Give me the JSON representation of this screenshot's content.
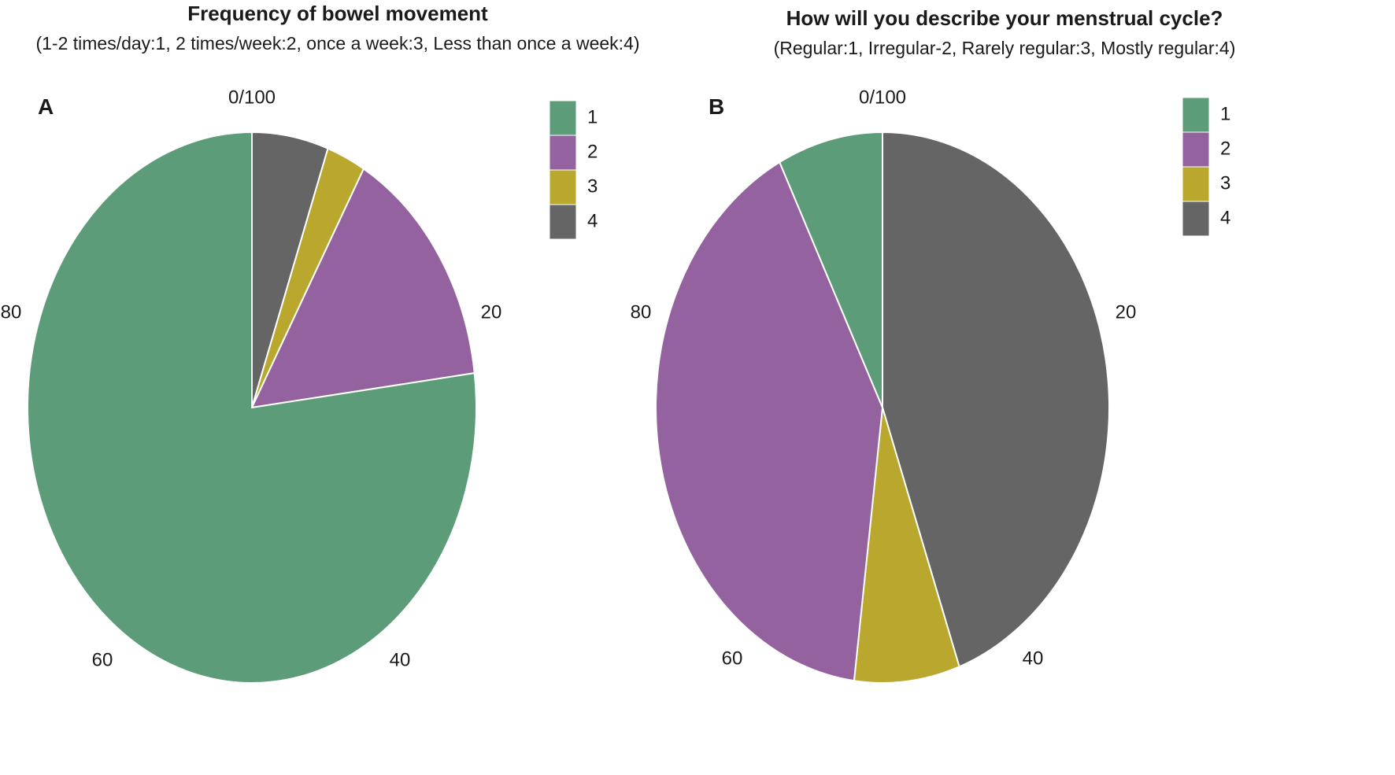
{
  "colors": {
    "1": "#5c9c78",
    "2": "#93629f",
    "3": "#b9a82d",
    "4": "#656565"
  },
  "chart_data": [
    {
      "type": "pie",
      "panel": "A",
      "title": "Frequency of bowel movement",
      "subtitle": "(1-2 times/day:1, 2 times/week:2, once a week:3, Less than once a week:4)",
      "slices": [
        {
          "label": "4",
          "value": 5.5
        },
        {
          "label": "3",
          "value": 2.8
        },
        {
          "label": "2",
          "value": 14.7
        },
        {
          "label": "1",
          "value": 77.0
        }
      ],
      "start": "top",
      "direction": "clockwise",
      "ticks": [
        "0/100",
        "20",
        "40",
        "60",
        "80"
      ],
      "legend": [
        "1",
        "2",
        "3",
        "4"
      ],
      "legend_position": "top-right"
    },
    {
      "type": "pie",
      "panel": "B",
      "title": "How will you describe your menstrual cycle?",
      "subtitle": "(Regular:1, Irregular-2, Rarely regular:3, Mostly regular:4)",
      "slices": [
        {
          "label": "4",
          "value": 44.5
        },
        {
          "label": "3",
          "value": 7.5
        },
        {
          "label": "2",
          "value": 40.5
        },
        {
          "label": "1",
          "value": 7.5
        }
      ],
      "start": "top",
      "direction": "clockwise",
      "ticks": [
        "0/100",
        "20",
        "40",
        "60",
        "80"
      ],
      "legend": [
        "1",
        "2",
        "3",
        "4"
      ],
      "legend_position": "top-right"
    }
  ]
}
